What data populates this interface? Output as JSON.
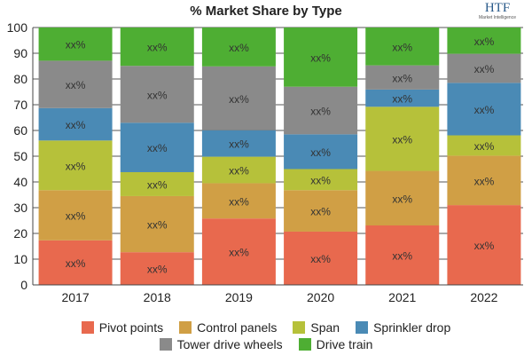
{
  "chart_data": {
    "type": "bar",
    "stacked": true,
    "title": "% Market Share by Type",
    "categories": [
      "2017",
      "2018",
      "2019",
      "2020",
      "2021",
      "2022"
    ],
    "ylim": [
      0,
      100
    ],
    "yticks": [
      0,
      10,
      20,
      30,
      40,
      50,
      60,
      70,
      80,
      90,
      100
    ],
    "grid": true,
    "legend_position": "bottom",
    "data_label": "xx%",
    "series": [
      {
        "name": "Pivot points",
        "color": "#e8694e",
        "values": [
          17.3,
          12.7,
          25.8,
          20.7,
          23.1,
          31.0
        ]
      },
      {
        "name": "Control panels",
        "color": "#d09f45",
        "values": [
          19.5,
          21.8,
          13.7,
          16.1,
          21.2,
          19.2
        ]
      },
      {
        "name": "Span",
        "color": "#b6c13a",
        "values": [
          19.3,
          9.3,
          10.3,
          8.2,
          24.9,
          7.9
        ]
      },
      {
        "name": "Sprinkler drop",
        "color": "#4a8ab5",
        "values": [
          12.6,
          19.2,
          10.3,
          13.5,
          6.7,
          20.4
        ]
      },
      {
        "name": "Tower drive wheels",
        "color": "#8a8a8a",
        "values": [
          18.4,
          22.1,
          24.8,
          18.5,
          9.4,
          11.3
        ]
      },
      {
        "name": "Drive train",
        "color": "#4eae33",
        "values": [
          12.9,
          14.9,
          15.1,
          23.0,
          14.7,
          10.2
        ]
      }
    ]
  },
  "logo": {
    "brand": "HTF",
    "tagline": "Market Intelligence"
  }
}
